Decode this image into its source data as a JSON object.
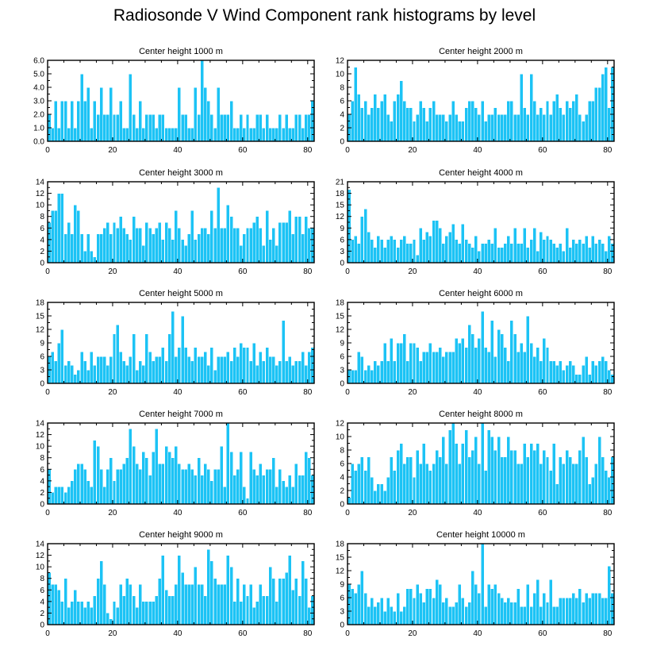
{
  "title": "Radiosonde V Wind Component rank histograms by level",
  "colors": {
    "bar_fill": "#1cc3f5",
    "bar_edge": "#ffffff",
    "axis": "#000000"
  },
  "chart_data": [
    {
      "type": "bar",
      "title": "Center height 1000 m",
      "xlim": [
        0,
        82
      ],
      "xticks": [
        "0",
        "20",
        "40",
        "60",
        "80"
      ],
      "ylim": [
        0,
        6
      ],
      "yticks": [
        "0.0",
        "1.0",
        "2.0",
        "3.0",
        "4.0",
        "5.0",
        "6.0"
      ],
      "values": [
        2,
        1,
        3,
        1,
        3,
        3,
        1,
        3,
        1,
        3,
        5,
        3,
        4,
        1,
        3,
        2,
        4,
        2,
        2,
        4,
        2,
        2,
        3,
        1,
        1,
        5,
        2,
        1,
        3,
        1,
        2,
        2,
        2,
        1,
        2,
        2,
        1,
        1,
        1,
        1,
        4,
        2,
        2,
        1,
        1,
        4,
        2,
        6,
        4,
        3,
        2,
        1,
        4,
        2,
        2,
        2,
        3,
        1,
        1,
        2,
        1,
        2,
        1,
        1,
        2,
        2,
        1,
        2,
        1,
        1,
        1,
        2,
        1,
        2,
        1,
        1,
        2,
        2,
        1,
        2,
        2,
        3
      ]
    },
    {
      "type": "bar",
      "title": "Center height 2000 m",
      "xlim": [
        0,
        82
      ],
      "xticks": [
        "0",
        "20",
        "40",
        "60",
        "80"
      ],
      "ylim": [
        0,
        12
      ],
      "yticks": [
        "0",
        "2",
        "4",
        "6",
        "8",
        "10",
        "12"
      ],
      "values": [
        4,
        6,
        11,
        7,
        5,
        6,
        4,
        5,
        7,
        5,
        6,
        7,
        4,
        3,
        6,
        7,
        9,
        6,
        5,
        5,
        3,
        4,
        6,
        5,
        3,
        5,
        6,
        4,
        4,
        4,
        3,
        4,
        6,
        4,
        3,
        3,
        5,
        6,
        6,
        5,
        4,
        6,
        3,
        4,
        4,
        5,
        4,
        4,
        4,
        6,
        6,
        4,
        4,
        10,
        5,
        4,
        10,
        6,
        4,
        5,
        4,
        6,
        4,
        6,
        7,
        5,
        4,
        6,
        5,
        6,
        7,
        4,
        3,
        4,
        6,
        6,
        8,
        8,
        10,
        11,
        5,
        11
      ]
    },
    {
      "type": "bar",
      "title": "Center height 3000 m",
      "xlim": [
        0,
        82
      ],
      "xticks": [
        "0",
        "20",
        "40",
        "60",
        "80"
      ],
      "ylim": [
        0,
        14
      ],
      "yticks": [
        "0",
        "2",
        "4",
        "6",
        "8",
        "10",
        "12",
        "14"
      ],
      "values": [
        7,
        9,
        9,
        12,
        12,
        5,
        7,
        5,
        10,
        9,
        5,
        2,
        5,
        2,
        1,
        5,
        5,
        6,
        7,
        5,
        7,
        6,
        8,
        6,
        5,
        4,
        8,
        6,
        6,
        3,
        7,
        6,
        5,
        6,
        7,
        4,
        7,
        6,
        4,
        9,
        6,
        4,
        3,
        5,
        9,
        4,
        5,
        6,
        6,
        5,
        9,
        6,
        13,
        6,
        6,
        10,
        8,
        6,
        6,
        3,
        5,
        6,
        6,
        7,
        8,
        6,
        3,
        9,
        4,
        6,
        3,
        7,
        7,
        7,
        9,
        5,
        8,
        8,
        5,
        8,
        6,
        6
      ]
    },
    {
      "type": "bar",
      "title": "Center height 4000 m",
      "xlim": [
        0,
        82
      ],
      "xticks": [
        "0",
        "20",
        "40",
        "60",
        "80"
      ],
      "ylim": [
        0,
        21
      ],
      "yticks": [
        "0",
        "3",
        "6",
        "9",
        "12",
        "15",
        "18",
        "21"
      ],
      "values": [
        19,
        6,
        7,
        5,
        12,
        14,
        8,
        6,
        4,
        7,
        6,
        4,
        6,
        7,
        6,
        4,
        6,
        7,
        5,
        5,
        6,
        2,
        9,
        6,
        8,
        7,
        11,
        11,
        9,
        5,
        7,
        8,
        10,
        6,
        5,
        10,
        6,
        5,
        4,
        7,
        3,
        5,
        5,
        6,
        5,
        9,
        4,
        4,
        5,
        7,
        5,
        9,
        5,
        5,
        9,
        4,
        6,
        9,
        3,
        8,
        6,
        7,
        6,
        5,
        4,
        5,
        3,
        9,
        4,
        6,
        5,
        6,
        5,
        7,
        4,
        7,
        5,
        6,
        5,
        3,
        7,
        5
      ]
    },
    {
      "type": "bar",
      "title": "Center height 5000 m",
      "xlim": [
        0,
        82
      ],
      "xticks": [
        "0",
        "20",
        "40",
        "60",
        "80"
      ],
      "ylim": [
        0,
        18
      ],
      "yticks": [
        "0",
        "3",
        "6",
        "9",
        "12",
        "15",
        "18"
      ],
      "values": [
        6,
        7,
        5,
        9,
        12,
        4,
        5,
        4,
        2,
        3,
        7,
        5,
        3,
        7,
        4,
        6,
        6,
        6,
        4,
        6,
        11,
        13,
        7,
        5,
        4,
        6,
        11,
        3,
        5,
        4,
        11,
        7,
        5,
        6,
        6,
        8,
        5,
        11,
        16,
        6,
        8,
        15,
        8,
        6,
        5,
        8,
        6,
        6,
        7,
        4,
        8,
        3,
        6,
        6,
        6,
        7,
        5,
        8,
        6,
        9,
        8,
        8,
        5,
        9,
        4,
        7,
        5,
        8,
        6,
        6,
        4,
        5,
        14,
        5,
        6,
        4,
        5,
        5,
        7,
        4,
        7,
        8
      ]
    },
    {
      "type": "bar",
      "title": "Center height 6000 m",
      "xlim": [
        0,
        82
      ],
      "xticks": [
        "0",
        "20",
        "40",
        "60",
        "80"
      ],
      "ylim": [
        0,
        18
      ],
      "yticks": [
        "0",
        "3",
        "6",
        "9",
        "12",
        "15",
        "18"
      ],
      "values": [
        3,
        3,
        3,
        7,
        6,
        3,
        4,
        3,
        5,
        4,
        5,
        9,
        5,
        10,
        5,
        9,
        9,
        11,
        5,
        9,
        9,
        8,
        5,
        7,
        7,
        9,
        7,
        7,
        8,
        6,
        7,
        7,
        7,
        10,
        9,
        10,
        8,
        13,
        11,
        8,
        10,
        16,
        8,
        7,
        14,
        6,
        12,
        11,
        8,
        5,
        14,
        11,
        7,
        9,
        7,
        15,
        9,
        6,
        8,
        5,
        10,
        8,
        5,
        5,
        4,
        5,
        3,
        4,
        5,
        4,
        2,
        2,
        4,
        6,
        2,
        5,
        4,
        5,
        6,
        5,
        3,
        2
      ]
    },
    {
      "type": "bar",
      "title": "Center height 7000 m",
      "xlim": [
        0,
        82
      ],
      "xticks": [
        "0",
        "20",
        "40",
        "60",
        "80"
      ],
      "ylim": [
        0,
        14
      ],
      "yticks": [
        "0",
        "2",
        "4",
        "6",
        "8",
        "10",
        "12",
        "14"
      ],
      "values": [
        6,
        2,
        3,
        3,
        3,
        2,
        3,
        4,
        6,
        7,
        7,
        6,
        4,
        3,
        11,
        10,
        6,
        3,
        6,
        8,
        4,
        6,
        6,
        7,
        8,
        13,
        10,
        7,
        6,
        9,
        8,
        5,
        9,
        13,
        7,
        7,
        10,
        9,
        8,
        10,
        7,
        6,
        6,
        7,
        6,
        5,
        8,
        5,
        7,
        6,
        4,
        6,
        6,
        10,
        3,
        14,
        9,
        5,
        6,
        9,
        3,
        1,
        9,
        6,
        5,
        7,
        5,
        6,
        6,
        8,
        3,
        6,
        4,
        3,
        5,
        3,
        7,
        5,
        5,
        9,
        8,
        5
      ]
    },
    {
      "type": "bar",
      "title": "Center height 8000 m",
      "xlim": [
        0,
        82
      ],
      "xticks": [
        "0",
        "20",
        "40",
        "60",
        "80"
      ],
      "ylim": [
        0,
        12
      ],
      "yticks": [
        "0",
        "2",
        "4",
        "6",
        "8",
        "10",
        "12"
      ],
      "values": [
        1,
        6,
        5,
        6,
        7,
        5,
        7,
        4,
        2,
        3,
        3,
        2,
        4,
        7,
        5,
        8,
        9,
        6,
        7,
        7,
        4,
        8,
        6,
        9,
        6,
        5,
        6,
        8,
        7,
        10,
        6,
        11,
        12,
        9,
        6,
        9,
        11,
        7,
        8,
        10,
        6,
        12,
        5,
        11,
        10,
        8,
        10,
        7,
        7,
        10,
        8,
        8,
        6,
        6,
        9,
        7,
        9,
        8,
        9,
        6,
        8,
        7,
        5,
        9,
        3,
        7,
        6,
        8,
        7,
        6,
        6,
        8,
        10,
        7,
        3,
        4,
        6,
        10,
        7,
        5,
        4,
        7
      ]
    },
    {
      "type": "bar",
      "title": "Center height 9000 m",
      "xlim": [
        0,
        82
      ],
      "xticks": [
        "0",
        "20",
        "40",
        "60",
        "80"
      ],
      "ylim": [
        0,
        14
      ],
      "yticks": [
        "0",
        "2",
        "4",
        "6",
        "8",
        "10",
        "12",
        "14"
      ],
      "values": [
        9,
        7,
        7,
        6,
        4,
        8,
        3,
        4,
        6,
        4,
        4,
        3,
        4,
        3,
        5,
        8,
        11,
        7,
        2,
        1,
        4,
        3,
        7,
        5,
        8,
        7,
        5,
        3,
        7,
        4,
        4,
        4,
        4,
        5,
        8,
        12,
        6,
        5,
        5,
        7,
        12,
        9,
        7,
        7,
        7,
        10,
        7,
        7,
        5,
        13,
        11,
        8,
        7,
        7,
        7,
        12,
        10,
        4,
        8,
        4,
        7,
        5,
        7,
        3,
        4,
        7,
        5,
        5,
        10,
        8,
        4,
        8,
        8,
        9,
        12,
        6,
        8,
        5,
        11,
        8,
        3,
        5
      ]
    },
    {
      "type": "bar",
      "title": "Center height 10000 m",
      "xlim": [
        0,
        82
      ],
      "xticks": [
        "0",
        "20",
        "40",
        "60",
        "80"
      ],
      "ylim": [
        0,
        18
      ],
      "yticks": [
        "0",
        "3",
        "6",
        "9",
        "12",
        "15",
        "18"
      ],
      "values": [
        9,
        8,
        7,
        9,
        12,
        7,
        4,
        6,
        4,
        5,
        6,
        3,
        6,
        4,
        3,
        7,
        3,
        4,
        8,
        8,
        6,
        9,
        7,
        5,
        8,
        8,
        6,
        10,
        9,
        5,
        6,
        4,
        4,
        5,
        9,
        6,
        4,
        5,
        12,
        9,
        7,
        18,
        4,
        9,
        8,
        9,
        7,
        6,
        5,
        6,
        5,
        5,
        8,
        4,
        4,
        9,
        4,
        7,
        10,
        4,
        7,
        5,
        10,
        4,
        4,
        6,
        6,
        6,
        6,
        7,
        6,
        8,
        5,
        7,
        6,
        7,
        7,
        7,
        6,
        6,
        13,
        7
      ]
    }
  ]
}
